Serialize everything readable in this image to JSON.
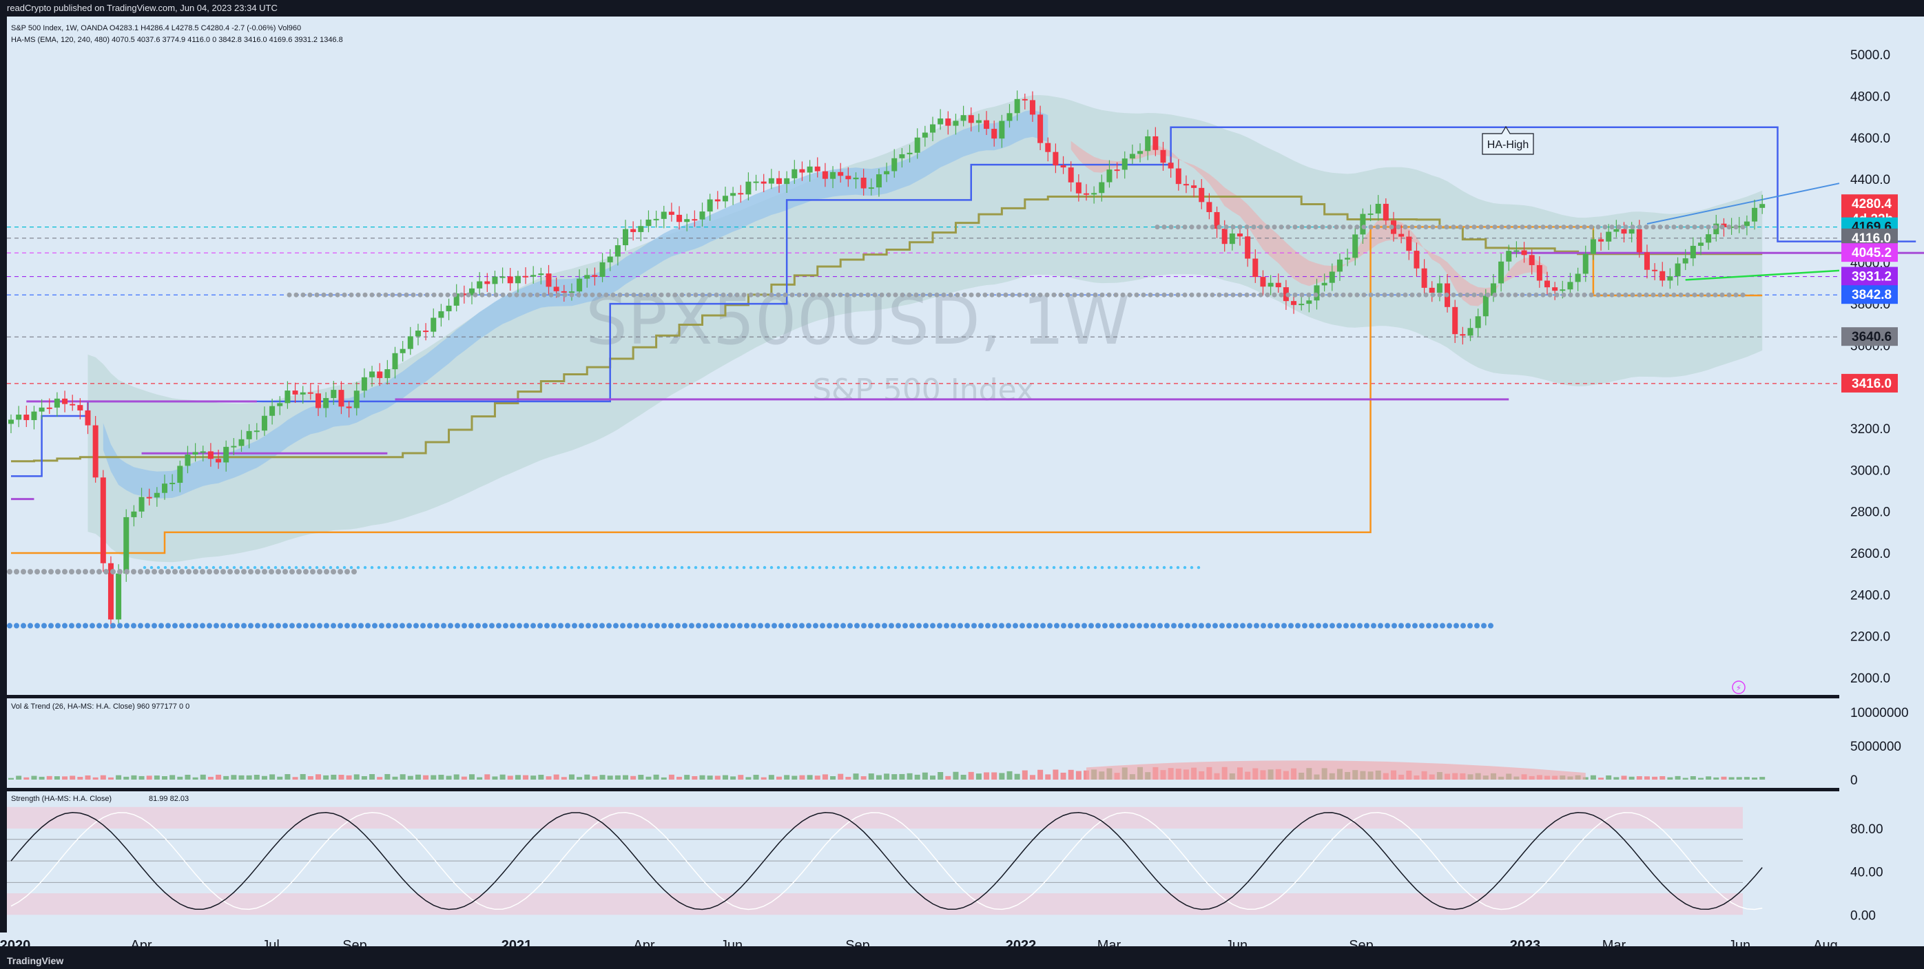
{
  "header": {
    "publisher": "readCrypto published on TradingView.com, Jun 04, 2023 23:34 UTC",
    "footer_brand": "TradingView"
  },
  "legend": {
    "line1": "S&P 500 Index, 1W, OANDA  O4283.1  H4286.4  L4278.5  C4280.4  -2.7 (-0.06%)  Vol960",
    "line2": "HA-MS (EMA, 120, 240, 480)  4070.5  4037.6  3774.9  4116.0  0  3842.8  3416.0  4169.6  3931.2  1346.8",
    "vol_label": "Vol & Trend (26, HA-MS: H.A. Close)  960  977177  0  0",
    "strength_label": "Strength (HA-MS: H.A. Close)  ",
    "strength_values": "81.99  82.03"
  },
  "watermark": {
    "symbol": "SPX500USD, 1W",
    "name": "S&P 500 Index"
  },
  "annotation": {
    "text": "HA-High"
  },
  "colors": {
    "bg": "#dce9f5",
    "up": "#4caf50",
    "down": "#f23645",
    "cloud_green": "#b9dcc4",
    "cloud_red": "#f3a3a6",
    "cloud_blue": "#9cc7ea",
    "olive": "#9b9a48",
    "orange": "#f7931a",
    "royal": "#4361ee",
    "purple": "#a64dd6"
  },
  "price_badges": [
    {
      "label": "4280.4",
      "sub": "4d 22h",
      "value": 4280.4,
      "bg": "#f23645",
      "fg": "#ffffff"
    },
    {
      "label": "4169.6",
      "value": 4169.6,
      "bg": "#00bcd4",
      "fg": "#131722"
    },
    {
      "label": "4116.0",
      "value": 4116.0,
      "bg": "#6b6f7a",
      "fg": "#ffffff"
    },
    {
      "label": "4045.2",
      "value": 4045.2,
      "bg": "#e040fb",
      "fg": "#ffffff"
    },
    {
      "label": "3931.2",
      "value": 3931.2,
      "bg": "#9c27f0",
      "fg": "#ffffff"
    },
    {
      "label": "3842.8",
      "value": 3842.8,
      "bg": "#2962ff",
      "fg": "#ffffff"
    },
    {
      "label": "3640.6",
      "value": 3640.6,
      "bg": "#787b86",
      "fg": "#131722"
    },
    {
      "label": "3416.0",
      "value": 3416.0,
      "bg": "#f23645",
      "fg": "#ffffff"
    }
  ],
  "chart_data": [
    {
      "type": "candlestick",
      "title": "S&P 500 Index, 1W, OANDA",
      "y_ticks": [
        "5000.0",
        "4800.0",
        "4600.0",
        "4400.0",
        "4200.0",
        "4000.0",
        "3800.0",
        "3600.0",
        "3400.0",
        "3200.0",
        "3000.0",
        "2800.0",
        "2600.0",
        "2400.0",
        "2200.0",
        "2000.0"
      ],
      "x_ticks": [
        "2020",
        "Apr",
        "Jul",
        "Sep",
        "2021",
        "Apr",
        "Jun",
        "Sep",
        "2022",
        "Mar",
        "Jun",
        "Sep",
        "2023",
        "Mar",
        "Jun",
        "Aug"
      ],
      "ylim": [
        1950,
        5150
      ],
      "close_anchors": [
        [
          0,
          3230
        ],
        [
          4,
          3300
        ],
        [
          8,
          3330
        ],
        [
          10,
          3230
        ],
        [
          11,
          2950
        ],
        [
          12,
          2530
        ],
        [
          13,
          2300
        ],
        [
          14,
          2500
        ],
        [
          15,
          2780
        ],
        [
          18,
          2870
        ],
        [
          21,
          2960
        ],
        [
          24,
          3100
        ],
        [
          27,
          3050
        ],
        [
          30,
          3150
        ],
        [
          33,
          3250
        ],
        [
          36,
          3370
        ],
        [
          38,
          3390
        ],
        [
          40,
          3300
        ],
        [
          42,
          3380
        ],
        [
          44,
          3290
        ],
        [
          46,
          3450
        ],
        [
          48,
          3460
        ],
        [
          52,
          3630
        ],
        [
          56,
          3760
        ],
        [
          60,
          3890
        ],
        [
          64,
          3920
        ],
        [
          68,
          3940
        ],
        [
          72,
          3850
        ],
        [
          76,
          3950
        ],
        [
          80,
          4130
        ],
        [
          84,
          4230
        ],
        [
          88,
          4200
        ],
        [
          92,
          4300
        ],
        [
          96,
          4370
        ],
        [
          100,
          4400
        ],
        [
          104,
          4450
        ],
        [
          108,
          4410
        ],
        [
          112,
          4370
        ],
        [
          116,
          4520
        ],
        [
          120,
          4660
        ],
        [
          124,
          4700
        ],
        [
          128,
          4620
        ],
        [
          131,
          4780
        ],
        [
          133,
          4730
        ],
        [
          134,
          4580
        ],
        [
          136,
          4480
        ],
        [
          138,
          4380
        ],
        [
          140,
          4320
        ],
        [
          142,
          4380
        ],
        [
          145,
          4500
        ],
        [
          148,
          4580
        ],
        [
          152,
          4400
        ],
        [
          155,
          4300
        ],
        [
          157,
          4170
        ],
        [
          158,
          4110
        ],
        [
          160,
          4120
        ],
        [
          162,
          3920
        ],
        [
          164,
          3900
        ],
        [
          167,
          3780
        ],
        [
          171,
          3900
        ],
        [
          174,
          4050
        ],
        [
          176,
          4220
        ],
        [
          178,
          4260
        ],
        [
          180,
          4160
        ],
        [
          182,
          4060
        ],
        [
          184,
          3860
        ],
        [
          186,
          3900
        ],
        [
          188,
          3660
        ],
        [
          189,
          3620
        ],
        [
          192,
          3830
        ],
        [
          194,
          3990
        ],
        [
          196,
          4080
        ],
        [
          198,
          3990
        ],
        [
          200,
          3850
        ],
        [
          203,
          3900
        ],
        [
          206,
          4090
        ],
        [
          209,
          4170
        ],
        [
          211,
          4130
        ],
        [
          213,
          3970
        ],
        [
          216,
          3920
        ],
        [
          218,
          4030
        ],
        [
          221,
          4150
        ],
        [
          223,
          4170
        ],
        [
          225,
          4170
        ],
        [
          226,
          4225
        ],
        [
          228,
          4280
        ]
      ],
      "bands": [
        "green cloud",
        "red cloud",
        "blue EMA band",
        "olive stepped line",
        "orange stepped line",
        "royal-blue HA-High line"
      ],
      "horizontal_levels": [
        4280.4,
        4169.6,
        4116.0,
        4045.2,
        3931.2,
        3842.8,
        3640.6,
        3416.0
      ]
    },
    {
      "type": "histogram",
      "title": "Vol & Trend (26, HA-MS: H.A. Close)",
      "y_ticks": [
        "10000000",
        "5000000",
        "0"
      ],
      "ylim": [
        0,
        11000000
      ],
      "volume_peak": 977177,
      "volume_anchors": [
        [
          0,
          0.4
        ],
        [
          40,
          0.6
        ],
        [
          100,
          0.5
        ],
        [
          128,
          0.9
        ],
        [
          150,
          1.4
        ],
        [
          172,
          1.2
        ],
        [
          200,
          0.5
        ],
        [
          228,
          0.3
        ]
      ]
    },
    {
      "type": "line",
      "title": "Strength (HA-MS: H.A. Close)",
      "y_ticks": [
        "80.00",
        "40.00",
        "0.00"
      ],
      "ylim": [
        -10,
        105
      ],
      "series": [
        {
          "name": "81.99",
          "last": 81.99
        },
        {
          "name": "82.03",
          "last": 82.03
        }
      ]
    }
  ]
}
